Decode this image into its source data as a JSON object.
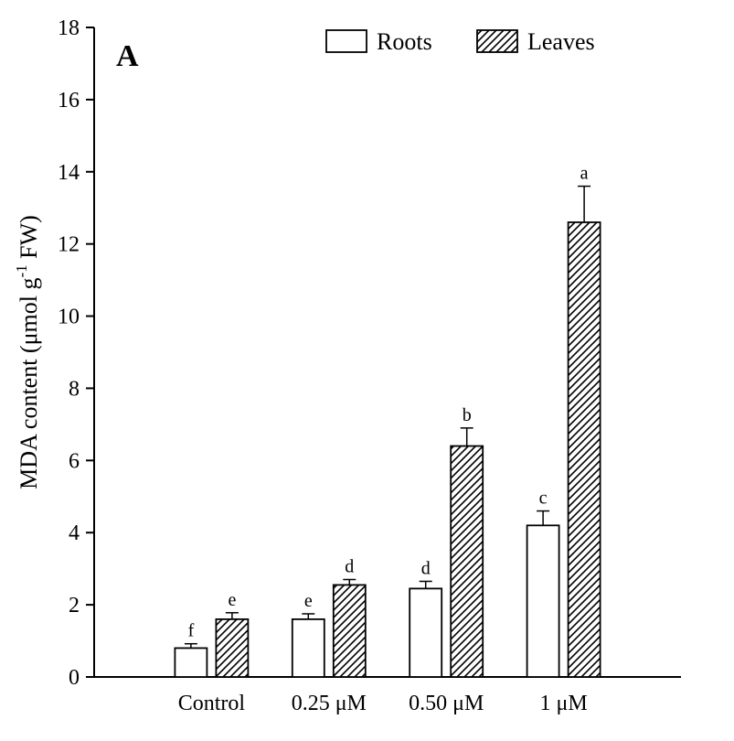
{
  "panel_label": "A",
  "chart_data": {
    "type": "bar",
    "title": "",
    "xlabel": "",
    "ylabel": "MDA content (μmol g⁻¹ FW)",
    "ylabel_pre": "MDA content (μmol g",
    "ylabel_sup": "-1",
    "ylabel_post": " FW)",
    "ylim": [
      0,
      18
    ],
    "ytick_step": 2,
    "grid": false,
    "legend_position": "top",
    "categories": [
      "Control",
      "0.25 μM",
      "0.50 μM",
      "1 μM"
    ],
    "series": [
      {
        "name": "Roots",
        "style": "open-white",
        "hatch": false,
        "values": [
          0.8,
          1.6,
          2.45,
          4.2
        ],
        "errors": [
          0.12,
          0.15,
          0.2,
          0.4
        ],
        "letters": [
          "f",
          "e",
          "d",
          "c"
        ]
      },
      {
        "name": "Leaves",
        "style": "diagonal-hatch",
        "hatch": true,
        "values": [
          1.6,
          2.55,
          6.4,
          12.6
        ],
        "errors": [
          0.18,
          0.15,
          0.5,
          1.0
        ],
        "letters": [
          "e",
          "d",
          "b",
          "a"
        ]
      }
    ],
    "colors": {
      "bar_fill": "#ffffff",
      "bar_stroke": "#000000",
      "hatch": "#000000",
      "axis": "#000000"
    }
  }
}
